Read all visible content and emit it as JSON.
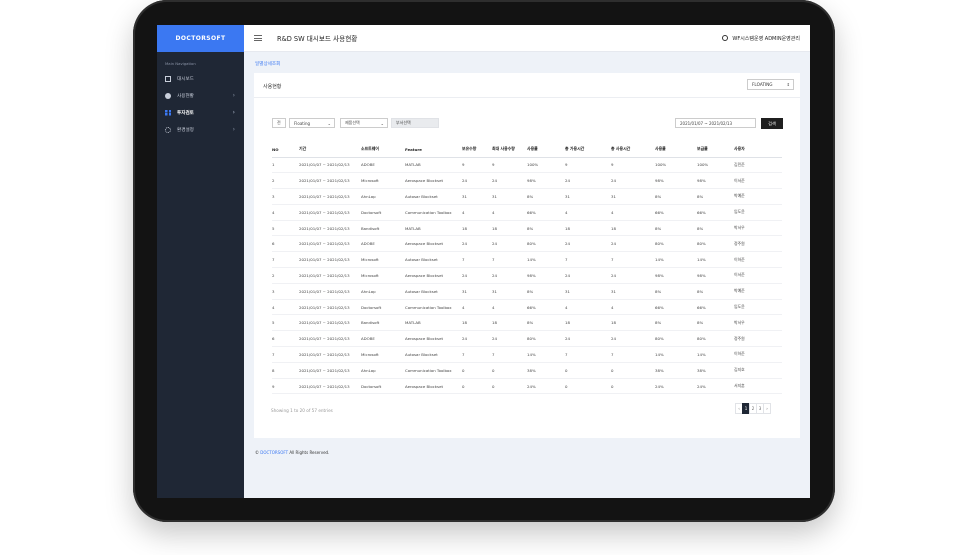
{
  "brand": "DOCTORSOFT",
  "sidebar": {
    "section_title": "Main Navigation",
    "items": [
      {
        "label": "대시보드",
        "icon": "dashboard-icon"
      },
      {
        "label": "사용현황",
        "icon": "pie-chart-icon"
      },
      {
        "label": "투자검토",
        "icon": "grid-icon"
      },
      {
        "label": "환경설정",
        "icon": "gear-icon"
      }
    ]
  },
  "header": {
    "title": "R&D SW 대시보드 사용현황",
    "user": "WF시스템운영 ADMIN운영관리"
  },
  "breadcrumb": "일별상세조회",
  "card": {
    "title": "사용현황",
    "mode_select": "FLOATING"
  },
  "filters": {
    "filter1": "전",
    "filter2": "Floating",
    "filter3": "제품선택",
    "filter4": "부서선택",
    "date_range": "2021/01/07 ~ 2021/02/13",
    "search_label": "검색"
  },
  "table": {
    "headers": [
      "NO",
      "기간",
      "소프트웨어",
      "Feature",
      "보유수량",
      "최대 사용수량",
      "사용률",
      "총 가용시간",
      "총 사용시간",
      "사용률",
      "보급률",
      "사용자"
    ],
    "rows": [
      [
        "1",
        "2021/01/07 ~ 2021/02/13",
        "ADOBE",
        "MATLAB",
        "9",
        "9",
        "100%",
        "9",
        "9",
        "100%",
        "100%",
        "김민준"
      ],
      [
        "2",
        "2021/01/07 ~ 2021/02/13",
        "Microsoft",
        "Aerospace Blockset",
        "24",
        "24",
        "98%",
        "24",
        "24",
        "98%",
        "98%",
        "이서준"
      ],
      [
        "3",
        "2021/01/07 ~ 2021/02/13",
        "AhnLap",
        "Autosar Blockset",
        "31",
        "31",
        "8%",
        "31",
        "31",
        "8%",
        "8%",
        "박예준"
      ],
      [
        "4",
        "2021/01/07 ~ 2021/02/13",
        "Doctorsoft",
        "Communication Toolbox",
        "4",
        "4",
        "66%",
        "4",
        "4",
        "66%",
        "66%",
        "임도윤"
      ],
      [
        "5",
        "2021/01/07 ~ 2021/02/13",
        "Bandisoft",
        "MATLAB",
        "18",
        "18",
        "8%",
        "18",
        "18",
        "8%",
        "8%",
        "박서우"
      ],
      [
        "6",
        "2021/01/07 ~ 2021/02/13",
        "ADOBE",
        "Aerospace Blockset",
        "24",
        "24",
        "80%",
        "24",
        "24",
        "80%",
        "80%",
        "정주원"
      ],
      [
        "7",
        "2021/01/07 ~ 2021/02/13",
        "Microsoft",
        "Autosar Blockset",
        "7",
        "7",
        "14%",
        "7",
        "7",
        "14%",
        "14%",
        "이하준"
      ],
      [
        "2",
        "2021/01/07 ~ 2021/02/13",
        "Microsoft",
        "Aerospace Blockset",
        "24",
        "24",
        "98%",
        "24",
        "24",
        "98%",
        "98%",
        "이서준"
      ],
      [
        "3",
        "2021/01/07 ~ 2021/02/13",
        "AhnLap",
        "Autosar Blockset",
        "31",
        "31",
        "8%",
        "31",
        "31",
        "8%",
        "8%",
        "박예준"
      ],
      [
        "4",
        "2021/01/07 ~ 2021/02/13",
        "Doctorsoft",
        "Communication Toolbox",
        "4",
        "4",
        "66%",
        "4",
        "4",
        "66%",
        "66%",
        "임도윤"
      ],
      [
        "5",
        "2021/01/07 ~ 2021/02/13",
        "Bandisoft",
        "MATLAB",
        "18",
        "18",
        "8%",
        "18",
        "18",
        "8%",
        "8%",
        "박서우"
      ],
      [
        "6",
        "2021/01/07 ~ 2021/02/13",
        "ADOBE",
        "Aerospace Blockset",
        "24",
        "24",
        "80%",
        "24",
        "24",
        "80%",
        "80%",
        "정주원"
      ],
      [
        "7",
        "2021/01/07 ~ 2021/02/13",
        "Microsoft",
        "Autosar Blockset",
        "7",
        "7",
        "14%",
        "7",
        "7",
        "14%",
        "14%",
        "이하준"
      ],
      [
        "8",
        "2021/01/07 ~ 2021/02/13",
        "AhnLap",
        "Communication Toolbox",
        "0",
        "0",
        "38%",
        "0",
        "0",
        "38%",
        "38%",
        "김지호"
      ],
      [
        "9",
        "2021/01/07 ~ 2021/02/13",
        "Doctorsoft",
        "Aerospace Blockset",
        "0",
        "0",
        "24%",
        "0",
        "0",
        "24%",
        "24%",
        "서지훈"
      ]
    ]
  },
  "pagination": {
    "summary": "Showing 1 to 20 of 57 entries",
    "prev": "‹",
    "pages": [
      "1",
      "2",
      "3"
    ],
    "next": "›"
  },
  "footer": {
    "prefix": "©",
    "brand": "DOCTORSOFT",
    "suffix": "All Rights Reserved."
  },
  "colors": {
    "accent": "#3b78f2",
    "sidebar_bg": "#1f2735",
    "page_bg": "#eef2f8",
    "device": "#131313"
  }
}
